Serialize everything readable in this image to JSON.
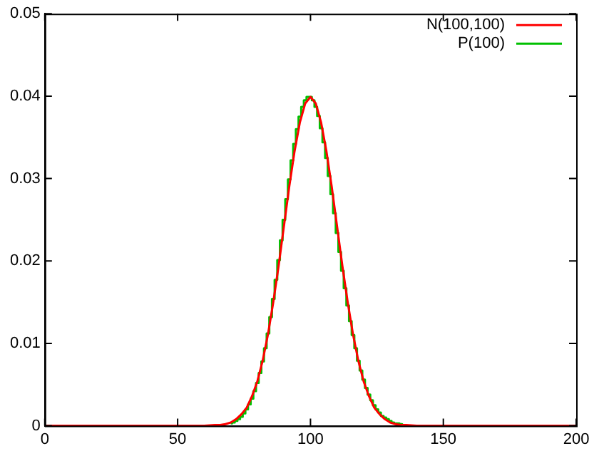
{
  "chart_data": {
    "type": "line",
    "xlim": [
      0,
      200
    ],
    "xticks": [
      0,
      50,
      100,
      150,
      200
    ],
    "ylim": [
      0,
      0.05
    ],
    "yticks": [
      0,
      0.01,
      0.02,
      0.03,
      0.04,
      0.05
    ],
    "grid": false,
    "legend": "top right",
    "series": [
      {
        "name": "N(100,100)",
        "color": "#ff0000",
        "x": [
          0,
          60,
          64,
          66,
          68,
          70,
          72,
          74,
          76,
          78,
          80,
          82,
          84,
          86,
          88,
          90,
          92,
          94,
          96,
          98,
          100,
          102,
          104,
          106,
          108,
          110,
          112,
          114,
          116,
          118,
          120,
          122,
          124,
          126,
          128,
          130,
          132,
          134,
          136,
          140,
          200
        ],
        "values": [
          0,
          0,
          0.0001,
          0.0001,
          0.0002,
          0.0004,
          0.0008,
          0.0014,
          0.0022,
          0.0036,
          0.0054,
          0.0079,
          0.0111,
          0.015,
          0.0194,
          0.0242,
          0.029,
          0.0333,
          0.0368,
          0.0391,
          0.0399,
          0.0391,
          0.0368,
          0.0333,
          0.029,
          0.0242,
          0.0194,
          0.015,
          0.0111,
          0.0079,
          0.0054,
          0.0036,
          0.0022,
          0.0014,
          0.0008,
          0.0004,
          0.0002,
          0.0001,
          0.0001,
          0,
          0
        ]
      },
      {
        "name": "P(100)",
        "color": "#00c000",
        "type": "step",
        "x": [
          70,
          71,
          72,
          73,
          74,
          75,
          76,
          77,
          78,
          79,
          80,
          81,
          82,
          83,
          84,
          85,
          86,
          87,
          88,
          89,
          90,
          91,
          92,
          93,
          94,
          95,
          96,
          97,
          98,
          99,
          100,
          101,
          102,
          103,
          104,
          105,
          106,
          107,
          108,
          109,
          110,
          111,
          112,
          113,
          114,
          115,
          116,
          117,
          118,
          119,
          120,
          121,
          122,
          123,
          124,
          125,
          126,
          127,
          128,
          129,
          130,
          131,
          132,
          133,
          134,
          135
        ],
        "values": [
          0.0003,
          0.0004,
          0.0006,
          0.0008,
          0.0011,
          0.0015,
          0.002,
          0.0026,
          0.0033,
          0.0042,
          0.0052,
          0.0064,
          0.0078,
          0.0094,
          0.0112,
          0.0132,
          0.0154,
          0.0177,
          0.0201,
          0.0225,
          0.025,
          0.0275,
          0.0299,
          0.0322,
          0.0342,
          0.036,
          0.0375,
          0.0387,
          0.0395,
          0.0399,
          0.0399,
          0.0395,
          0.0387,
          0.0376,
          0.0361,
          0.0344,
          0.0325,
          0.0303,
          0.0281,
          0.0258,
          0.0234,
          0.0211,
          0.0188,
          0.0167,
          0.0146,
          0.0127,
          0.011,
          0.0094,
          0.0079,
          0.0067,
          0.0056,
          0.0046,
          0.0038,
          0.0031,
          0.0025,
          0.002,
          0.0016,
          0.0012,
          0.001,
          0.0008,
          0.0006,
          0.0004,
          0.0003,
          0.0003,
          0.0002,
          0.0001
        ]
      }
    ]
  }
}
